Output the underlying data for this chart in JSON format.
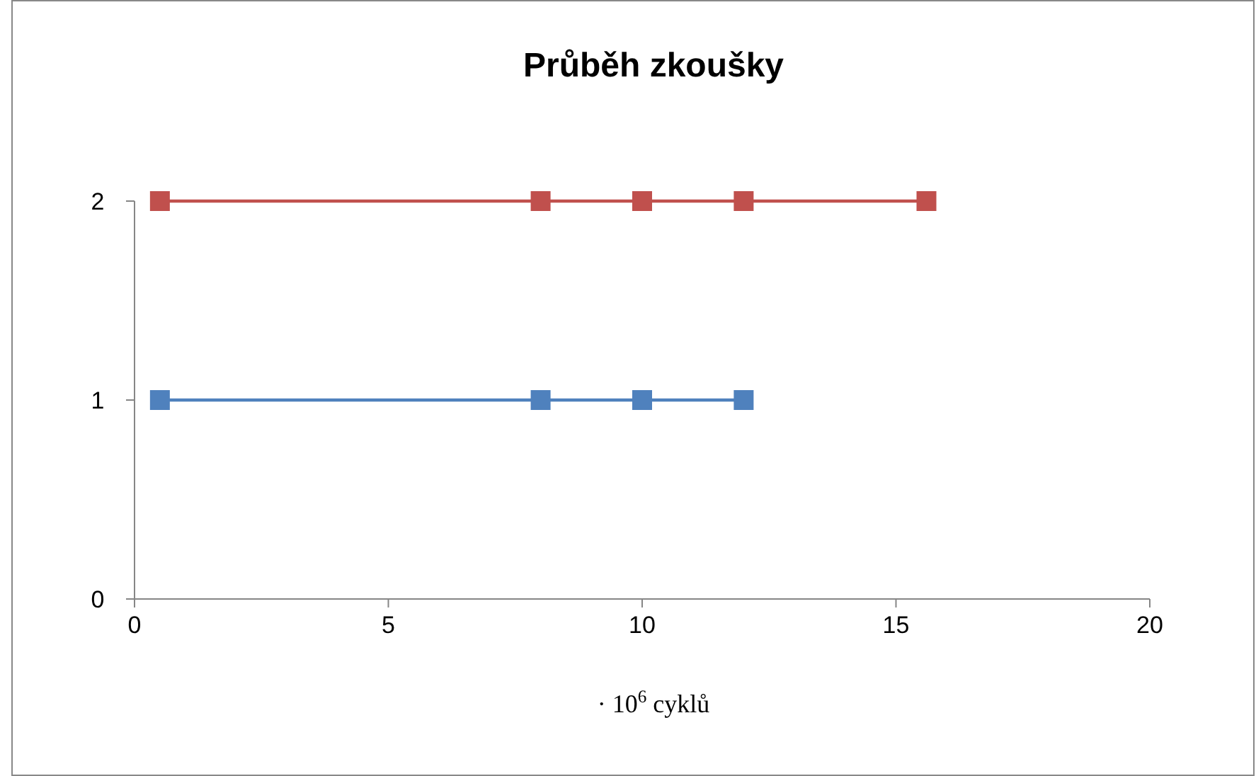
{
  "chart_data": {
    "type": "line",
    "title": "Průběh zkoušky",
    "xlabel": "· 10$^{6}$ cyklů",
    "xlim": [
      0,
      20
    ],
    "xticks": [
      0,
      5,
      10,
      15,
      20
    ],
    "ylim": [
      0,
      2
    ],
    "yticks": [
      0,
      1,
      2
    ],
    "marker": "square",
    "line_style": "solid",
    "series": [
      {
        "color": "#4f81bd",
        "x": [
          0.5,
          8,
          10,
          12
        ],
        "values": [
          1,
          1,
          1,
          1
        ]
      },
      {
        "color": "#c0504d",
        "x": [
          0.5,
          8,
          10,
          12,
          15.6
        ],
        "values": [
          2,
          2,
          2,
          2,
          2
        ]
      }
    ]
  }
}
